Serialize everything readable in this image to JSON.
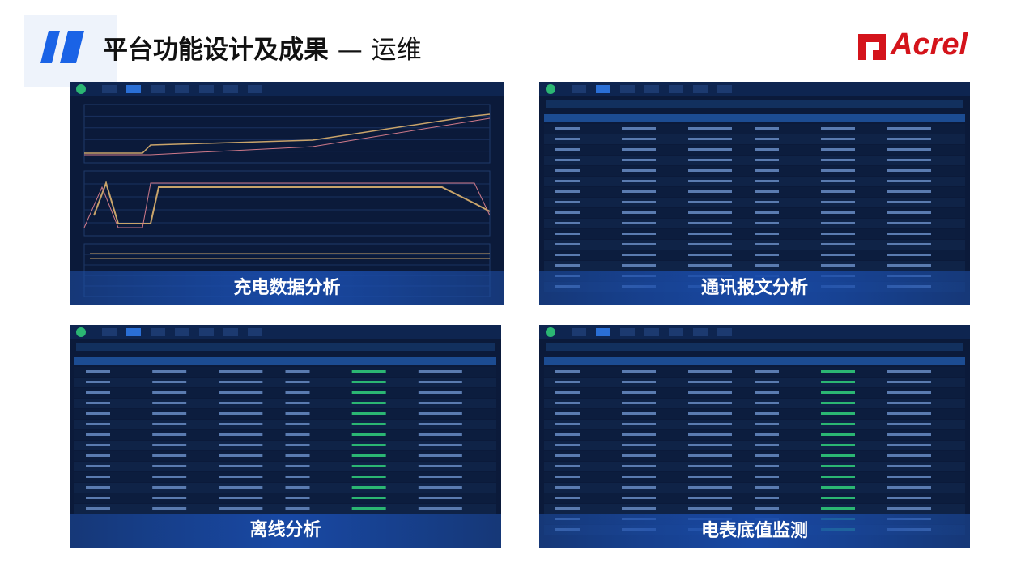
{
  "header": {
    "title": "平台功能设计及成果",
    "dash": "—",
    "subtitle": "运维",
    "logo": "Acrel"
  },
  "panels": [
    {
      "caption": "充电数据分析"
    },
    {
      "caption": "通讯报文分析"
    },
    {
      "caption": "离线分析"
    },
    {
      "caption": "电表底值监测"
    }
  ]
}
